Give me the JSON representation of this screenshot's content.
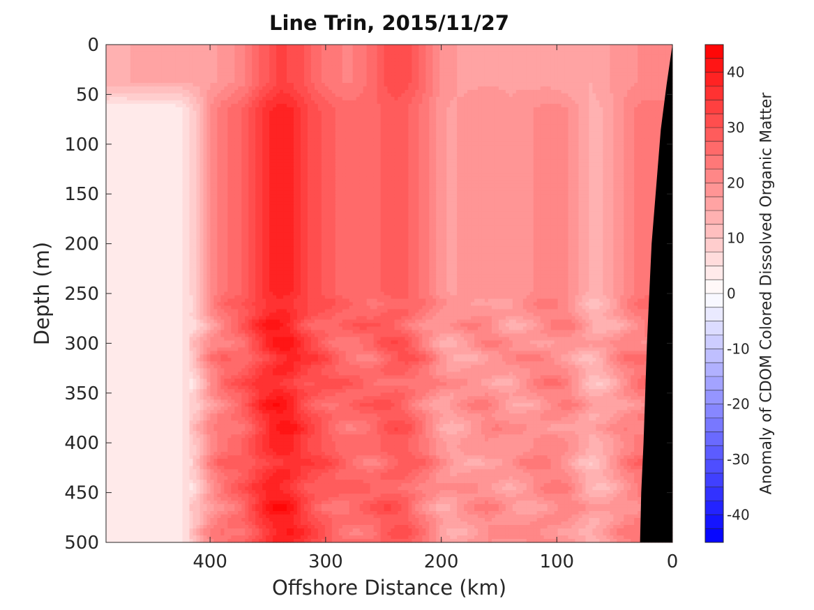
{
  "chart_data": {
    "type": "heatmap",
    "title": "Line Trin, 2015/11/27",
    "xlabel": "Offshore Distance (km)",
    "ylabel": "Depth (m)",
    "colorbar_label": "Anomaly of CDOM Colored Dissolved Organic Matter",
    "xlim": [
      490,
      0
    ],
    "x_reversed": true,
    "ylim": [
      0,
      500
    ],
    "y_reversed": true,
    "x_ticks": [
      400,
      300,
      200,
      100,
      0
    ],
    "y_ticks": [
      0,
      50,
      100,
      150,
      200,
      250,
      300,
      350,
      400,
      450,
      500
    ],
    "colorbar_range": [
      -45,
      45
    ],
    "colorbar_step": 2.5,
    "colorbar_ticks": [
      40,
      30,
      20,
      10,
      0,
      -10,
      -20,
      -30,
      -40
    ],
    "colormap": {
      "low": "#0000ff",
      "mid": "#ffffff",
      "high": "#ff0000"
    },
    "land_color": "#000000",
    "x_nodes": [
      490,
      480,
      470,
      455,
      440,
      430,
      420,
      410,
      400,
      390,
      380,
      370,
      360,
      350,
      340,
      330,
      320,
      310,
      300,
      290,
      280,
      270,
      260,
      250,
      240,
      230,
      220,
      210,
      200,
      190,
      180,
      170,
      160,
      150,
      140,
      130,
      120,
      110,
      100,
      90,
      80,
      70,
      60,
      50,
      40,
      30,
      20,
      10,
      0
    ],
    "surface_layer": {
      "depth_max": 45,
      "values": [
        15,
        14,
        15,
        15,
        15,
        15,
        15,
        16,
        17,
        18,
        20,
        22,
        26,
        30,
        33,
        32,
        30,
        27,
        24,
        23,
        22,
        24,
        26,
        30,
        32,
        31,
        28,
        24,
        20,
        18,
        17,
        17,
        17,
        17,
        17,
        17,
        16,
        17,
        16,
        15,
        16,
        15,
        17,
        18,
        19,
        20,
        20,
        20,
        20
      ]
    },
    "deep_profile": {
      "values": [
        3,
        3,
        3,
        3,
        3,
        3,
        6,
        12,
        20,
        24,
        26,
        28,
        33,
        37,
        39,
        38,
        34,
        31,
        29,
        27,
        26,
        26,
        26,
        28,
        29,
        28,
        25,
        22,
        18,
        17,
        18,
        19,
        20,
        19,
        18,
        19,
        20,
        21,
        21,
        20,
        17,
        14,
        15,
        18,
        21,
        23,
        24,
        24,
        24
      ]
    },
    "bands": [
      {
        "depth": 260,
        "amplitude": 3
      },
      {
        "depth": 282,
        "amplitude": 5
      },
      {
        "depth": 300,
        "amplitude": 4
      },
      {
        "depth": 315,
        "amplitude": 5
      },
      {
        "depth": 340,
        "amplitude": 5
      },
      {
        "depth": 362,
        "amplitude": 5
      },
      {
        "depth": 385,
        "amplitude": 4
      },
      {
        "depth": 420,
        "amplitude": 5
      },
      {
        "depth": 445,
        "amplitude": 4
      },
      {
        "depth": 465,
        "amplitude": 5
      },
      {
        "depth": 490,
        "amplitude": 4
      }
    ],
    "bathymetry": [
      {
        "x": 0,
        "depth": 0
      },
      {
        "x": 5,
        "depth": 40
      },
      {
        "x": 10,
        "depth": 85
      },
      {
        "x": 18,
        "depth": 200
      },
      {
        "x": 22,
        "depth": 300
      },
      {
        "x": 25,
        "depth": 400
      },
      {
        "x": 27,
        "depth": 450
      },
      {
        "x": 28,
        "depth": 500
      }
    ]
  }
}
